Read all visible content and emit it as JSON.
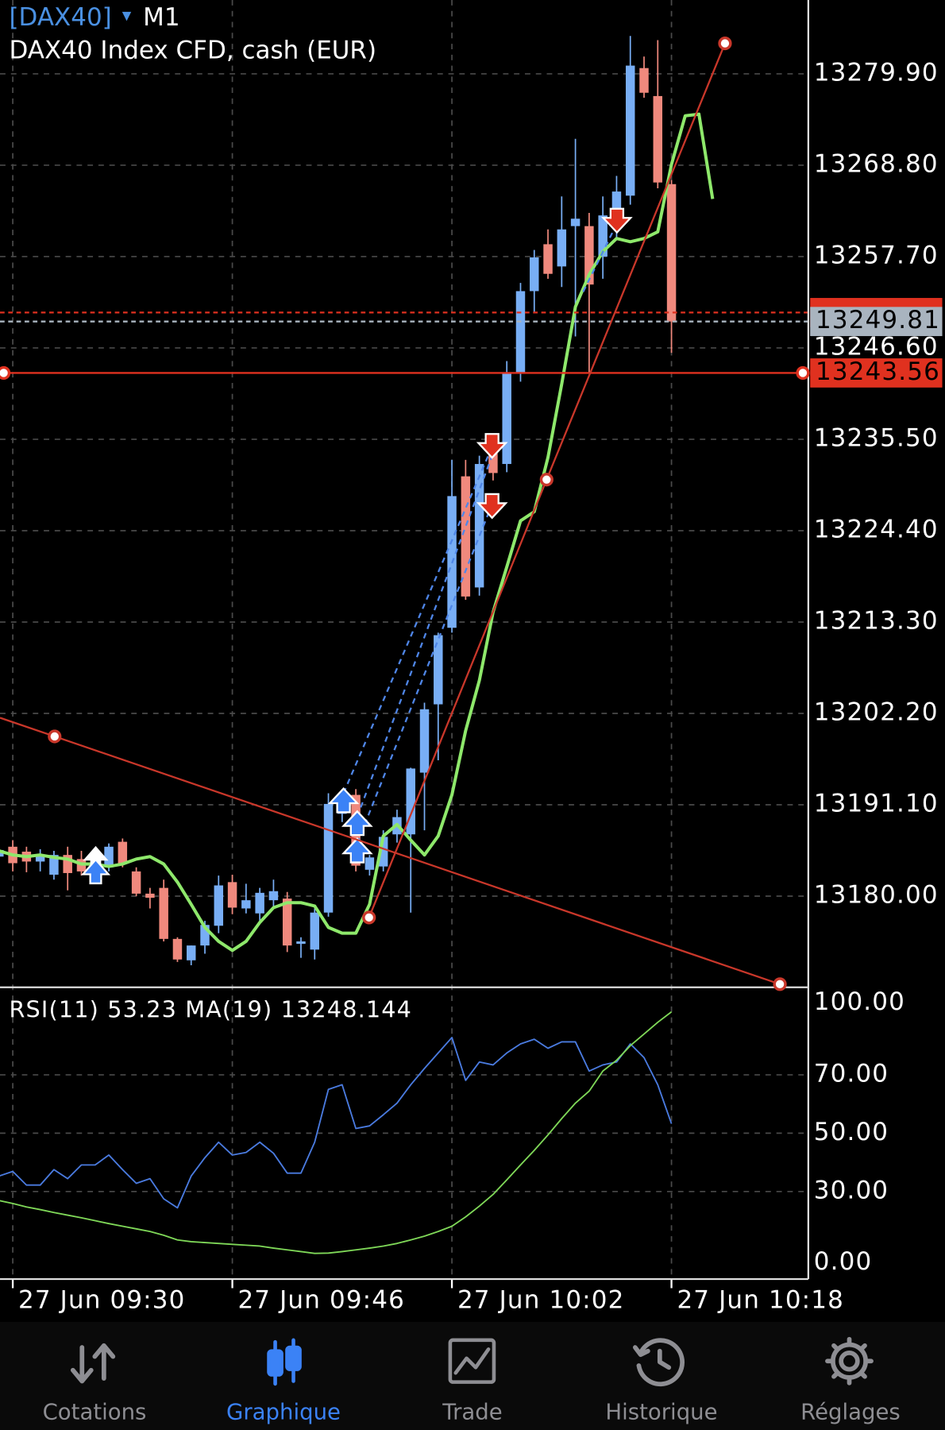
{
  "header": {
    "symbol": "[DAX40]",
    "timeframe": "M1",
    "description": "DAX40 Index CFD, cash (EUR)"
  },
  "chart_data": [
    {
      "type": "candlestick",
      "up_color": "#78aef5",
      "down_color": "#f0897d",
      "x": [
        569,
        570,
        571,
        572,
        573,
        574,
        575,
        576,
        577,
        578,
        579,
        580,
        581,
        582,
        583,
        584,
        585,
        586,
        587,
        588,
        589,
        590,
        591,
        592,
        593,
        594,
        595,
        596,
        597,
        598,
        599,
        600,
        601,
        602,
        603,
        604,
        605,
        606,
        607,
        608,
        609,
        610,
        611,
        612,
        613,
        614,
        615,
        616,
        617,
        618
      ],
      "open": [
        13184.8,
        13186.0,
        13185.4,
        13184.2,
        13182.6,
        13185.0,
        13184.5,
        13183.0,
        13183.5,
        13186.6,
        13183.0,
        13180.3,
        13181.0,
        13174.8,
        13172.2,
        13174.0,
        13176.4,
        13181.7,
        13178.5,
        13177.9,
        13179.5,
        13179.7,
        13174.2,
        13173.5,
        13178.0,
        13190.0,
        13192.3,
        13183.2,
        13183.6,
        13187.5,
        13187.5,
        13195.0,
        13203.3,
        13212.6,
        13231.0,
        13217.5,
        13233.8,
        13232.5,
        13243.5,
        13253.5,
        13259.2,
        13256.5,
        13261.4,
        13261.4,
        13257.7,
        13262.3,
        13265.1,
        13280.6,
        13277.2,
        13266.5
      ],
      "high": [
        13186.4,
        13186.8,
        13186.0,
        13185.7,
        13185.5,
        13186.0,
        13185.5,
        13185.8,
        13186.4,
        13187.0,
        13183.5,
        13181.0,
        13182.0,
        13175.0,
        13174.0,
        13177.0,
        13182.5,
        13182.6,
        13181.5,
        13181.0,
        13182.0,
        13180.5,
        13175.0,
        13178.5,
        13192.5,
        13193.0,
        13193.0,
        13185.0,
        13188.0,
        13190.5,
        13195.6,
        13203.5,
        13212.0,
        13233.0,
        13233.0,
        13233.5,
        13235.0,
        13245.0,
        13254.5,
        13258.5,
        13261.0,
        13265.0,
        13272.0,
        13263.0,
        13265.0,
        13267.5,
        13284.5,
        13282.0,
        13284.0,
        13267.0
      ],
      "low": [
        13183.5,
        13183.0,
        13182.9,
        13183.0,
        13182.0,
        13180.7,
        13182.5,
        13182.0,
        13183.0,
        13183.5,
        13180.0,
        13178.5,
        13174.5,
        13172.0,
        13171.6,
        13173.0,
        13175.5,
        13177.8,
        13177.9,
        13177.0,
        13178.5,
        13173.2,
        13172.5,
        13172.3,
        13177.5,
        13189.0,
        13183.0,
        13182.5,
        13183.0,
        13186.5,
        13178.0,
        13188.0,
        13196.5,
        13212.0,
        13216.0,
        13216.5,
        13230.5,
        13231.5,
        13242.5,
        13251.0,
        13255.0,
        13254.0,
        13248.0,
        13243.5,
        13255.0,
        13260.0,
        13264.0,
        13277.0,
        13266.0,
        13246.0
      ],
      "close": [
        13185.6,
        13184.0,
        13184.2,
        13185.0,
        13185.0,
        13182.8,
        13183.0,
        13185.0,
        13186.0,
        13183.9,
        13180.3,
        13179.8,
        13174.8,
        13172.3,
        13174.0,
        13176.5,
        13181.3,
        13178.6,
        13179.5,
        13180.4,
        13180.6,
        13174.0,
        13174.5,
        13178.0,
        13191.2,
        13191.5,
        13183.7,
        13184.7,
        13187.2,
        13189.6,
        13195.5,
        13202.7,
        13211.7,
        13228.6,
        13216.4,
        13232.5,
        13231.4,
        13243.6,
        13253.5,
        13257.6,
        13255.6,
        13261.0,
        13262.3,
        13254.3,
        13262.7,
        13265.6,
        13280.9,
        13277.6,
        13266.7,
        13249.81
      ],
      "ma": {
        "color": "#8ee86b",
        "x": [
          569,
          570,
          571,
          572,
          573,
          574,
          575,
          576,
          577,
          578,
          579,
          580,
          581,
          582,
          583,
          584,
          585,
          586,
          587,
          588,
          589,
          590,
          591,
          592,
          593,
          594,
          595,
          596,
          597,
          598,
          599,
          600,
          601,
          602,
          603,
          604,
          605,
          606,
          607,
          608,
          609,
          610,
          611,
          612,
          613,
          614,
          615,
          616,
          617,
          618,
          619,
          620,
          621
        ],
        "values": [
          13185.5,
          13185.0,
          13184.8,
          13185.0,
          13184.7,
          13184.5,
          13183.9,
          13183.9,
          13183.6,
          13183.9,
          13184.5,
          13184.8,
          13183.9,
          13181.7,
          13179.0,
          13176.2,
          13174.5,
          13173.4,
          13174.5,
          13176.8,
          13178.6,
          13179.2,
          13179.2,
          13178.8,
          13176.2,
          13175.5,
          13175.5,
          13179.0,
          13187.3,
          13188.7,
          13186.8,
          13185.0,
          13187.3,
          13192.3,
          13200.1,
          13206.2,
          13214.5,
          13220.0,
          13225.6,
          13226.7,
          13233.3,
          13242.2,
          13251.6,
          13255.5,
          13258.3,
          13259.9,
          13259.5,
          13259.9,
          13260.7,
          13268.9,
          13274.8,
          13275.0,
          13264.7
        ]
      },
      "hlines": [
        {
          "value": 13250.9,
          "color": "#e0311f",
          "dashed": true,
          "show_label": false
        },
        {
          "value": 13249.81,
          "color": "#a9b4bf",
          "dashed": true,
          "show_label": true
        },
        {
          "value": 13243.56,
          "color": "#e0311f",
          "dashed": false,
          "show_label": true
        }
      ],
      "trendlines": [
        {
          "color": "#c9372a",
          "x": [
            573.05,
            625.9
          ],
          "values": [
            13199.4,
            13169.3
          ],
          "extend_left": true
        },
        {
          "color": "#c9372a",
          "x": [
            595.96,
            608.9,
            621.9
          ],
          "values": [
            13177.4,
            13230.6,
            13283.6
          ],
          "extend_left": false
        }
      ],
      "xlim": [
        569.07,
        627.97
      ],
      "xticks": [
        {
          "value": 570,
          "label": "27 Jun 09:30"
        },
        {
          "value": 586,
          "label": "27 Jun 09:46"
        },
        {
          "value": 602,
          "label": "27 Jun 10:02"
        },
        {
          "value": 618,
          "label": "27 Jun 10:18"
        }
      ],
      "ylim": [
        13168.92,
        13288.87
      ],
      "yticks": [
        {
          "value": 13279.9,
          "label": "13279.90"
        },
        {
          "value": 13268.8,
          "label": "13268.80"
        },
        {
          "value": 13257.7,
          "label": "13257.70"
        },
        {
          "value": 13246.6,
          "label": "13246.60"
        },
        {
          "value": 13235.5,
          "label": "13235.50"
        },
        {
          "value": 13224.4,
          "label": "13224.40"
        },
        {
          "value": 13213.3,
          "label": "13213.30"
        },
        {
          "value": 13202.2,
          "label": "13202.20"
        },
        {
          "value": 13191.1,
          "label": "13191.10"
        },
        {
          "value": 13180,
          "label": "13180.00"
        }
      ],
      "grid": true
    },
    {
      "type": "line",
      "title": "RSI(11) 53.23 MA(19) 13248.144",
      "series": [
        {
          "color": "#4a7be0",
          "values": [
            35.3,
            36.9,
            32.2,
            32.2,
            37.5,
            34.4,
            39.1,
            39.1,
            42.5,
            37.5,
            32.8,
            34.4,
            27.5,
            24.4,
            35.3,
            41.6,
            46.9,
            42.5,
            43.4,
            46.9,
            43.1,
            36.3,
            36.3,
            46.9,
            65.0,
            66.6,
            51.6,
            52.5,
            56.3,
            60.3,
            66.6,
            72.2,
            77.5,
            82.8,
            68.1,
            74.4,
            73.4,
            77.5,
            80.6,
            82.2,
            79.1,
            81.3,
            81.3,
            71.3,
            73.4,
            74.4,
            80.6,
            75.9,
            66.6,
            53.23
          ]
        },
        {
          "color": "#7fd858",
          "values": [
            26.9,
            25.9,
            24.7,
            23.8,
            22.8,
            21.9,
            21.0,
            20.0,
            19.0,
            18.1,
            17.2,
            16.3,
            15.0,
            13.4,
            12.8,
            12.5,
            12.2,
            11.9,
            11.6,
            11.3,
            10.6,
            10.0,
            9.4,
            8.8,
            8.9,
            9.4,
            10.0,
            10.6,
            11.3,
            12.2,
            13.4,
            14.7,
            16.3,
            18.1,
            21.3,
            25.0,
            29.0,
            34.0,
            39.1,
            44.1,
            49.4,
            55.0,
            60.3,
            64.4,
            71.3,
            75.0,
            80.0,
            84.0,
            88.0,
            91.6
          ]
        }
      ],
      "ylim": [
        0,
        100
      ],
      "yticks": [
        {
          "value": 100,
          "label": "100.00"
        },
        {
          "value": 70,
          "label": "70.00"
        },
        {
          "value": 50,
          "label": "50.00"
        },
        {
          "value": 30,
          "label": "30.00"
        },
        {
          "value": 0,
          "label": "0.00"
        }
      ],
      "grid": true
    }
  ],
  "nav": {
    "items": [
      "Cotations",
      "Graphique",
      "Trade",
      "Historique",
      "Réglages"
    ],
    "active": 1
  }
}
